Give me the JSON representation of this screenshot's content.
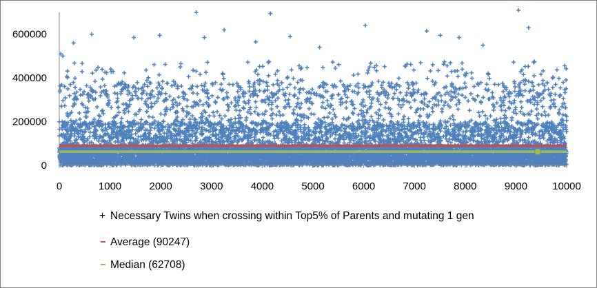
{
  "chart_data": {
    "type": "scatter",
    "title": "",
    "xlabel": "",
    "ylabel": "",
    "xlim": [
      0,
      10000
    ],
    "ylim": [
      0,
      700000
    ],
    "x_ticks": [
      "0",
      "1000",
      "2000",
      "3000",
      "4000",
      "5000",
      "6000",
      "7000",
      "8000",
      "9000",
      "10000"
    ],
    "y_ticks": [
      "0",
      "200000",
      "400000",
      "600000"
    ],
    "grid": false,
    "legend_position": "bottom",
    "n_points": 10000,
    "distribution_note_values": {
      "typical_max": 380000,
      "dense_band_max": 200000
    },
    "highlighted_points": [
      {
        "x": 30,
        "y": 510000
      },
      {
        "x": 70,
        "y": 500000
      },
      {
        "x": 280,
        "y": 560000
      },
      {
        "x": 640,
        "y": 600000
      },
      {
        "x": 1470,
        "y": 585000
      },
      {
        "x": 1980,
        "y": 595000
      },
      {
        "x": 2700,
        "y": 700000
      },
      {
        "x": 2860,
        "y": 585000
      },
      {
        "x": 3250,
        "y": 620000
      },
      {
        "x": 3870,
        "y": 565000
      },
      {
        "x": 4160,
        "y": 695000
      },
      {
        "x": 4550,
        "y": 590000
      },
      {
        "x": 5130,
        "y": 540000
      },
      {
        "x": 6030,
        "y": 640000
      },
      {
        "x": 7240,
        "y": 615000
      },
      {
        "x": 7510,
        "y": 595000
      },
      {
        "x": 7880,
        "y": 585000
      },
      {
        "x": 8350,
        "y": 550000
      },
      {
        "x": 9050,
        "y": 710000
      },
      {
        "x": 9250,
        "y": 630000
      }
    ],
    "series": [
      {
        "name": "Necessary Twins when crossing within Top5% of Parents and mutating 1 gen",
        "color": "#4f81bd",
        "marker": "+"
      },
      {
        "name": "Average (90247)",
        "color": "#c0504d",
        "value": 90247
      },
      {
        "name": "Median (62708)",
        "color": "#9bbb59",
        "value": 62708,
        "marker_point": {
          "x": 9430,
          "y": 62708
        }
      }
    ]
  }
}
